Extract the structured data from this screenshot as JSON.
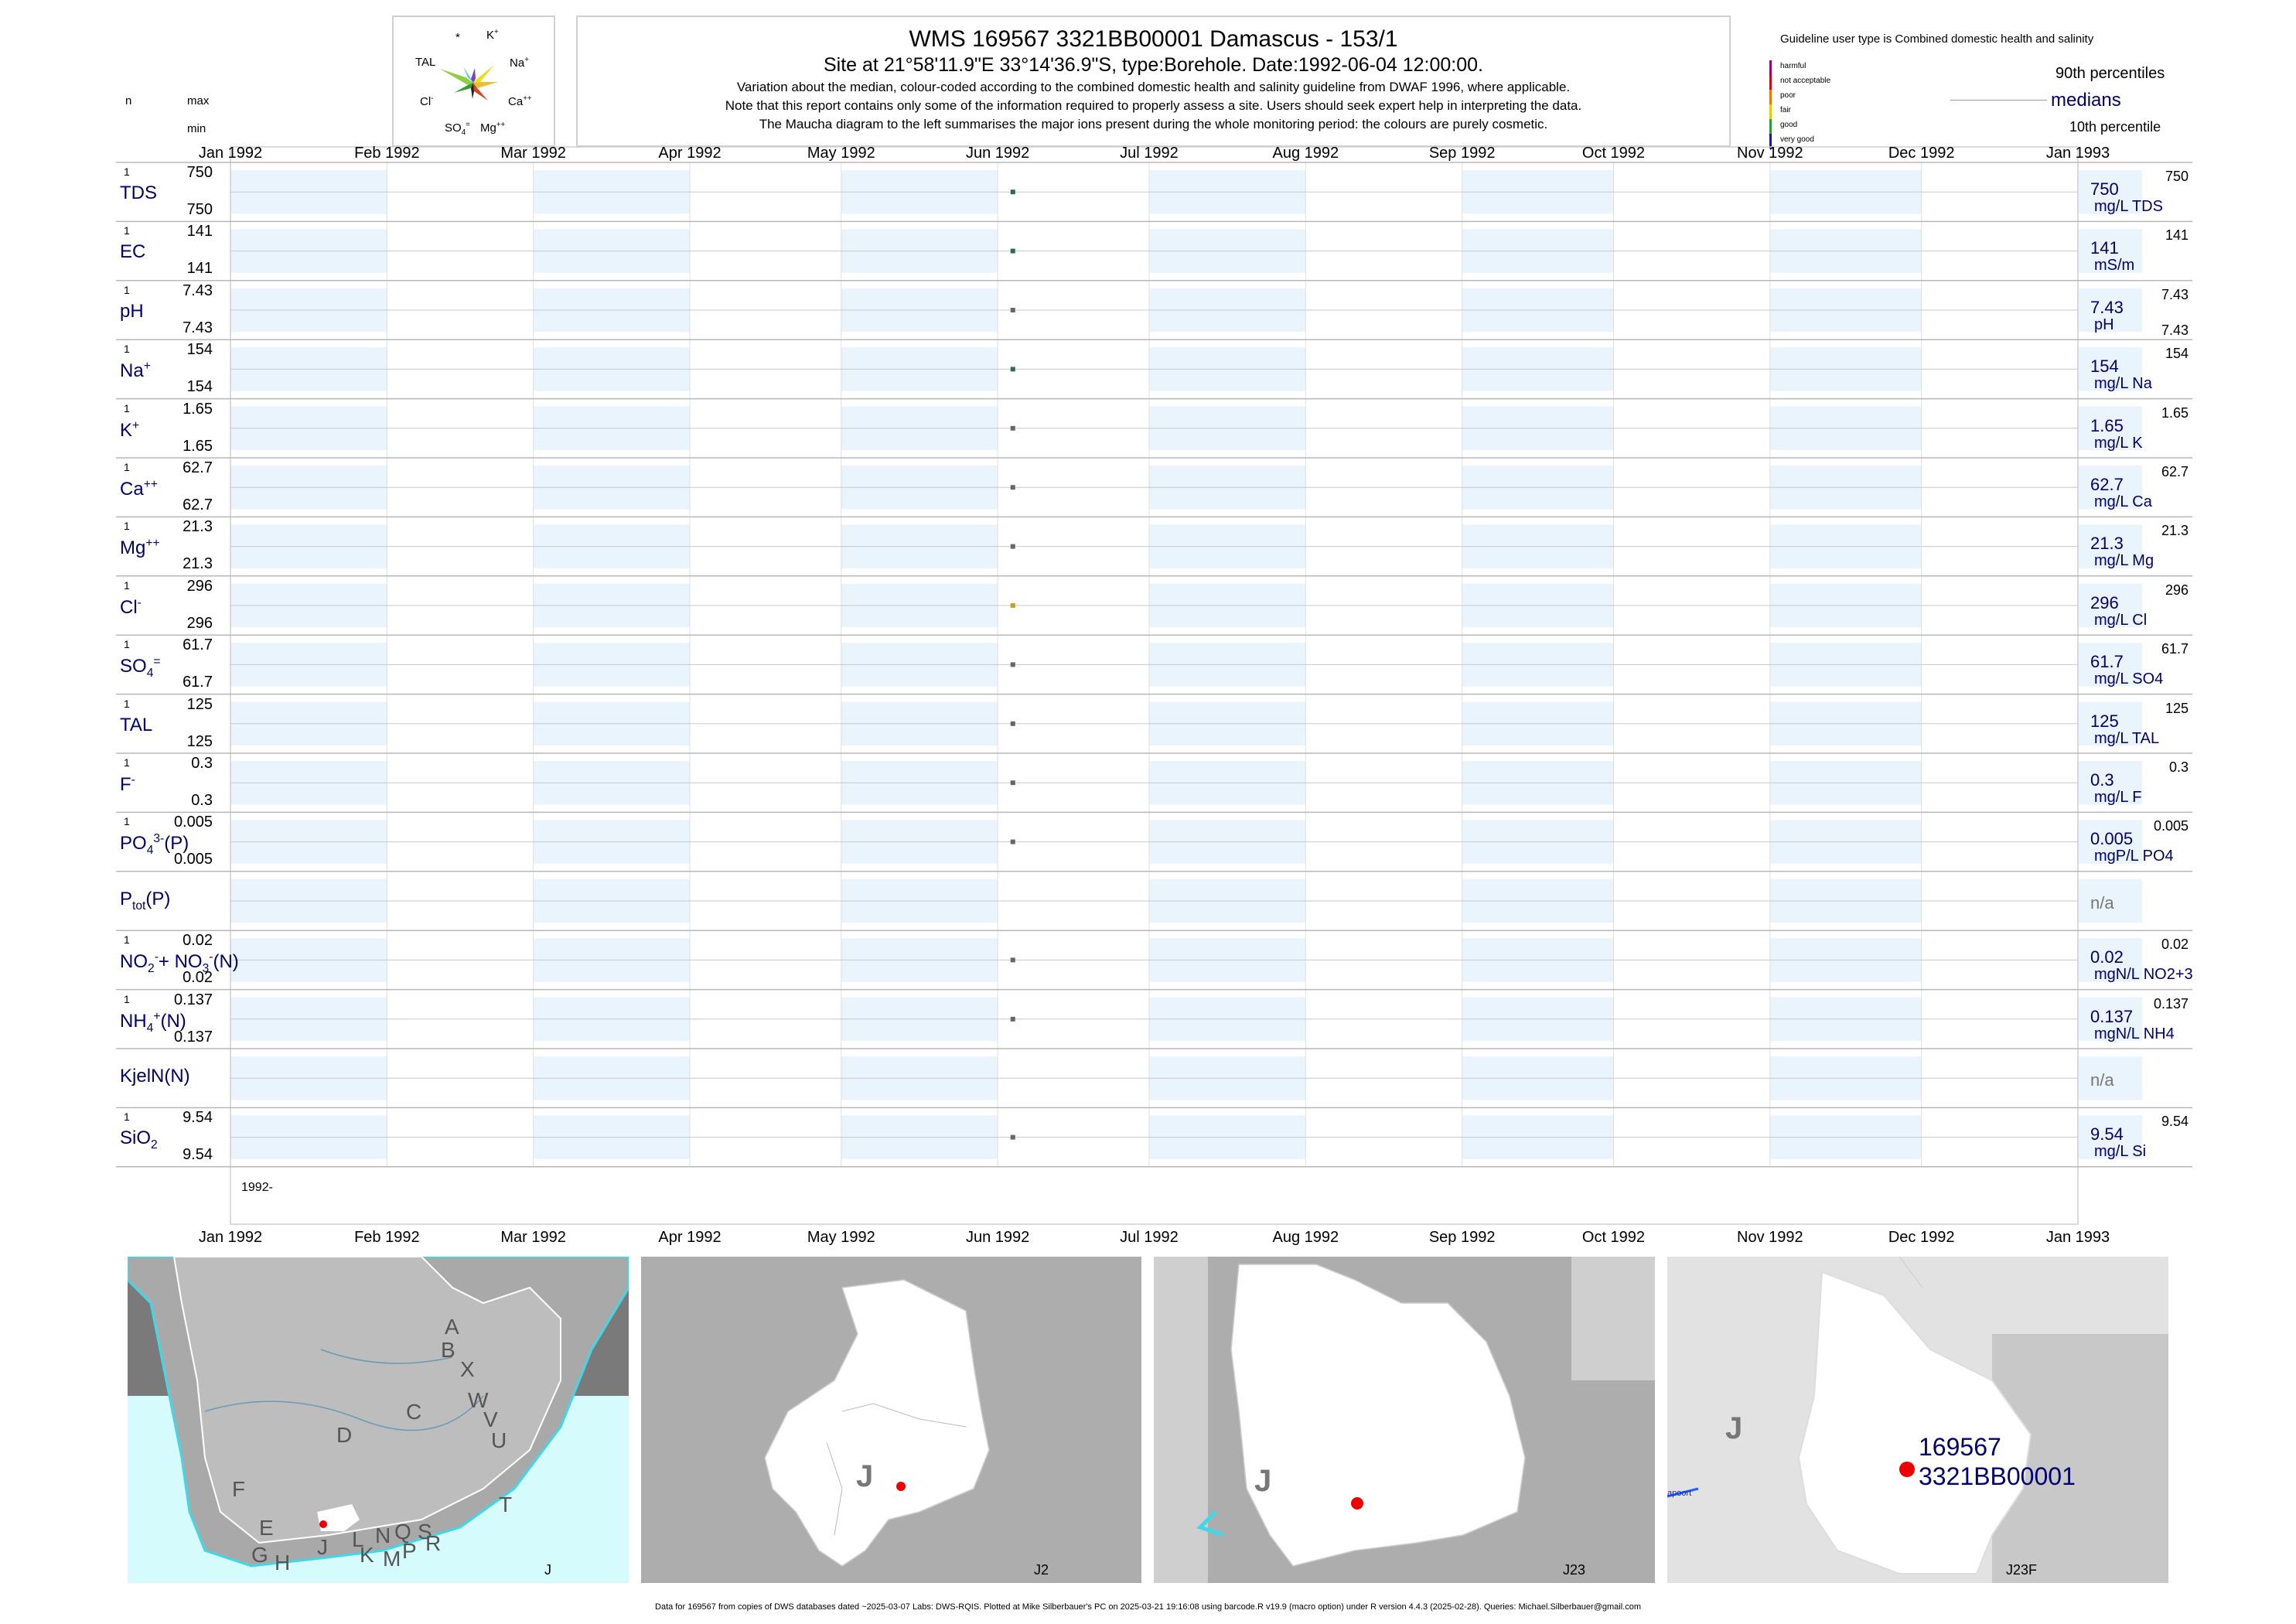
{
  "header": {
    "title": "WMS 169567 3321BB00001 Damascus - 153/1",
    "subtitle": "Site at 21°58'11.9\"E 33°14'36.9\"S, type:Borehole. Date:1992-06-04 12:00:00.",
    "note1": "Variation about the median,  colour-coded according to the combined domestic health and salinity guideline from DWAF 1996, where applicable.",
    "note2": "Note that this report contains only some of the information required to properly assess a site. Users should seek expert help in interpreting the data.",
    "note3": "The Maucha diagram to the left summarises the major ions present during the whole monitoring period: the colours are purely cosmetic."
  },
  "left_header": {
    "n": "n",
    "max": "max",
    "min": "min"
  },
  "maucha": {
    "star": "*",
    "k": "K",
    "k_sup": "+",
    "tal": "TAL",
    "na": "Na",
    "na_sup": "+",
    "cl": "Cl",
    "cl_sup": "-",
    "ca": "Ca",
    "ca_sup": "++",
    "so4": "SO",
    "so4_sub": "4",
    "so4_sup": "=",
    "mg": "Mg",
    "mg_sup": "++"
  },
  "legend": {
    "title": "Guideline user type is Combined domestic health and salinity",
    "p90": "90th percentiles",
    "medians": "medians",
    "p10": "10th percentile",
    "classes": [
      {
        "label": "harmful",
        "color": "#a0007a"
      },
      {
        "label": "not acceptable",
        "color": "#e0001a"
      },
      {
        "label": "poor",
        "color": "#f07800"
      },
      {
        "label": "fair",
        "color": "#e8c800"
      },
      {
        "label": "good",
        "color": "#2e9e2e"
      },
      {
        "label": "very good",
        "color": "#1a1aa0"
      }
    ]
  },
  "chart_data": {
    "type": "scatter",
    "x_axis": {
      "range": [
        "1992-01-01",
        "1993-01-01"
      ],
      "tick_labels": [
        "Jan 1992",
        "Feb 1992",
        "Mar 1992",
        "Apr 1992",
        "May 1992",
        "Jun 1992",
        "Jul 1992",
        "Aug 1992",
        "Sep 1992",
        "Oct 1992",
        "Nov 1992",
        "Dec 1992",
        "Jan 1993"
      ],
      "tick_dates": [
        "1992-01-01",
        "1992-02-01",
        "1992-03-01",
        "1992-04-01",
        "1992-05-01",
        "1992-06-01",
        "1992-07-01",
        "1992-08-01",
        "1992-09-01",
        "1992-10-01",
        "1992-11-01",
        "1992-12-01",
        "1993-01-01"
      ],
      "year_label": "1992-"
    },
    "sample_date": "1992-06-04",
    "parameters": [
      {
        "id": "tds",
        "label": "TDS",
        "sup": "",
        "sub": "",
        "n": "1",
        "max": "750",
        "min": "750",
        "median": "750",
        "unit": "mg/L TDS",
        "p90": "750",
        "p10": "",
        "value": 750,
        "color": "#2e6b4e"
      },
      {
        "id": "ec",
        "label": "EC",
        "sup": "",
        "sub": "",
        "n": "1",
        "max": "141",
        "min": "141",
        "median": "141",
        "unit": "mS/m",
        "p90": "141",
        "p10": "",
        "value": 141,
        "color": "#2e6b4e"
      },
      {
        "id": "ph",
        "label": "pH",
        "sup": "",
        "sub": "",
        "n": "1",
        "max": "7.43",
        "min": "7.43",
        "median": "7.43",
        "unit": "pH",
        "p90": "7.43",
        "p10": "7.43",
        "value": 7.43,
        "color": "#666666"
      },
      {
        "id": "na",
        "label": "Na",
        "sup": "+",
        "sub": "",
        "n": "1",
        "max": "154",
        "min": "154",
        "median": "154",
        "unit": "mg/L Na",
        "p90": "154",
        "p10": "",
        "value": 154,
        "color": "#2e6b4e"
      },
      {
        "id": "k",
        "label": "K",
        "sup": "+",
        "sub": "",
        "n": "1",
        "max": "1.65",
        "min": "1.65",
        "median": "1.65",
        "unit": "mg/L K",
        "p90": "1.65",
        "p10": "",
        "value": 1.65,
        "color": "#666666"
      },
      {
        "id": "ca",
        "label": "Ca",
        "sup": "++",
        "sub": "",
        "n": "1",
        "max": "62.7",
        "min": "62.7",
        "median": "62.7",
        "unit": "mg/L Ca",
        "p90": "62.7",
        "p10": "",
        "value": 62.7,
        "color": "#666666"
      },
      {
        "id": "mg",
        "label": "Mg",
        "sup": "++",
        "sub": "",
        "n": "1",
        "max": "21.3",
        "min": "21.3",
        "median": "21.3",
        "unit": "mg/L Mg",
        "p90": "21.3",
        "p10": "",
        "value": 21.3,
        "color": "#666666"
      },
      {
        "id": "cl",
        "label": "Cl",
        "sup": "-",
        "sub": "",
        "n": "1",
        "max": "296",
        "min": "296",
        "median": "296",
        "unit": "mg/L Cl",
        "p90": "296",
        "p10": "",
        "value": 296,
        "color": "#c8a020"
      },
      {
        "id": "so4",
        "label": "SO",
        "sup": "=",
        "sub": "4",
        "n": "1",
        "max": "61.7",
        "min": "61.7",
        "median": "61.7",
        "unit": "mg/L SO4",
        "p90": "61.7",
        "p10": "",
        "value": 61.7,
        "color": "#666666"
      },
      {
        "id": "tal",
        "label": "TAL",
        "sup": "",
        "sub": "",
        "n": "1",
        "max": "125",
        "min": "125",
        "median": "125",
        "unit": "mg/L TAL",
        "p90": "125",
        "p10": "",
        "value": 125,
        "color": "#666666"
      },
      {
        "id": "f",
        "label": "F",
        "sup": "-",
        "sub": "",
        "n": "1",
        "max": "0.3",
        "min": "0.3",
        "median": "0.3",
        "unit": "mg/L F",
        "p90": "0.3",
        "p10": "",
        "value": 0.3,
        "color": "#666666"
      },
      {
        "id": "po4",
        "label": "PO",
        "sup": "3-",
        "sub": "4",
        "suffix": "(P)",
        "n": "1",
        "max": "0.005",
        "min": "0.005",
        "median": "0.005",
        "unit": "mgP/L PO4",
        "p90": "0.005",
        "p10": "",
        "value": 0.005,
        "color": "#666666"
      },
      {
        "id": "ptot",
        "label": "P",
        "sup": "",
        "sub": "tot",
        "suffix": "(P)",
        "n": "",
        "max": "",
        "min": "",
        "median": "n/a",
        "unit": "",
        "p90": "",
        "p10": "",
        "value": null,
        "color": "#666666"
      },
      {
        "id": "nox",
        "label": "NO",
        "sup": "-",
        "sub": "2",
        "suffix": "+ NO",
        "suffix_sup": "-",
        "suffix_sub": "3",
        "suffix2": "(N)",
        "n": "1",
        "max": "0.02",
        "min": "0.02",
        "median": "0.02",
        "unit": "mgN/L NO2+3",
        "p90": "0.02",
        "p10": "",
        "value": 0.02,
        "color": "#666666"
      },
      {
        "id": "nh4",
        "label": "NH",
        "sup": "+",
        "sub": "4",
        "suffix": "(N)",
        "n": "1",
        "max": "0.137",
        "min": "0.137",
        "median": "0.137",
        "unit": "mgN/L NH4",
        "p90": "0.137",
        "p10": "",
        "value": 0.137,
        "color": "#666666"
      },
      {
        "id": "kjeln",
        "label": "KjelN(N)",
        "sup": "",
        "sub": "",
        "n": "",
        "max": "",
        "min": "",
        "median": "n/a",
        "unit": "",
        "p90": "",
        "p10": "",
        "value": null,
        "color": "#666666"
      },
      {
        "id": "sio2",
        "label": "SiO",
        "sup": "",
        "sub": "2",
        "n": "1",
        "max": "9.54",
        "min": "9.54",
        "median": "9.54",
        "unit": "mg/L Si",
        "p90": "9.54",
        "p10": "",
        "value": 9.54,
        "color": "#666666"
      }
    ]
  },
  "maps": [
    {
      "caption": "J",
      "letters": [
        "A",
        "B",
        "X",
        "W",
        "C",
        "V",
        "U",
        "D",
        "T",
        "F",
        "E",
        "G",
        "H",
        "J",
        "L",
        "N",
        "Q",
        "S",
        "R",
        "K",
        "M",
        "P"
      ]
    },
    {
      "caption": "J2",
      "letters": [
        "J"
      ]
    },
    {
      "caption": "J23",
      "letters": [
        "J"
      ]
    },
    {
      "caption": "J23F",
      "letters": [
        "J"
      ],
      "site_id": "169567",
      "site_code": "3321BB00001",
      "place": "apoort"
    }
  ],
  "footer": "Data for 169567 from copies of DWS databases dated ~2025-03-07 Labs: DWS-RQIS. Plotted at Mike Silberbauer's PC on 2025-03-21 19:16:08 using barcode.R v19.9 (macro option) under R version 4.4.3 (2025-02-28). Queries: Michael.Silberbauer@gmail.com"
}
